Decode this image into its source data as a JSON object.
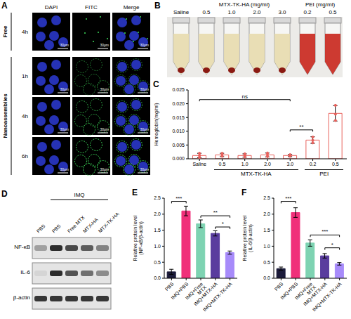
{
  "panel_A": {
    "label": "A",
    "columns": [
      "DAPI",
      "FITC",
      "Merge"
    ],
    "groups": [
      {
        "name": "Free",
        "rows": [
          "4h"
        ]
      },
      {
        "name": "Nanoassemblies",
        "rows": [
          "1h",
          "4h",
          "6h"
        ]
      }
    ],
    "scale_bar": "30μm"
  },
  "panel_B": {
    "label": "B",
    "saline": {
      "label": "Saline",
      "color": "#e8dcae"
    },
    "groups": [
      {
        "name": "MTX-TK-HA (mg/ml)",
        "labels": [
          "0.5",
          "1.0",
          "2.0",
          "3.0"
        ],
        "color": "#e8dcae"
      },
      {
        "name": "PEI (mg/ml)",
        "labels": [
          "0.2",
          "0.5"
        ],
        "color": "#c9261c"
      }
    ]
  },
  "panel_D": {
    "label": "D",
    "treatment": "IMQ",
    "lanes": [
      "PBS",
      "PBS",
      "Free MTX",
      "MTX-HA",
      "MTX-TK-HA"
    ],
    "rows": [
      "NF-κB",
      "IL-6",
      "β-actin"
    ]
  },
  "chart_data": [
    {
      "type": "bar",
      "title": "C",
      "categories": [
        "Saline",
        "0.5",
        "1.0",
        "2.0",
        "3.0",
        "0.2",
        "0.5"
      ],
      "groups": [
        {
          "label": "MTX-TK-HA",
          "from": 1,
          "to": 4
        },
        {
          "label": "PEI",
          "from": 5,
          "to": 6
        }
      ],
      "values": [
        0.0012,
        0.0014,
        0.0012,
        0.0014,
        0.0012,
        0.0068,
        0.0165
      ],
      "errors": [
        0.0008,
        0.0006,
        0.0006,
        0.0007,
        0.0004,
        0.0012,
        0.0028
      ],
      "points": [
        [
          0.0005,
          0.0012,
          0.002
        ],
        [
          0.0009,
          0.0014,
          0.002
        ],
        [
          0.0007,
          0.0012,
          0.0018
        ],
        [
          0.0008,
          0.0014,
          0.0021
        ],
        [
          0.0009,
          0.0012,
          0.0015
        ],
        [
          0.0058,
          0.0067,
          0.0079
        ],
        [
          0.0139,
          0.0162,
          0.0194
        ]
      ],
      "color": "#e8615c",
      "y_label": [
        "Hemoglobin(mg/ml)"
      ],
      "ylim": [
        0,
        0.025
      ],
      "yticks": [
        {
          "value": 0,
          "label": "0.000"
        },
        0.005,
        {
          "value": 0.01,
          "label": "0.010"
        },
        0.015,
        {
          "value": 0.02,
          "label": "0.020"
        },
        0.025
      ],
      "annotations": [
        {
          "text": "ns",
          "from": 0,
          "to": 4,
          "y": 0.0215
        },
        {
          "text": "**",
          "from": 4,
          "to": 5,
          "y": 0.0105
        }
      ]
    },
    {
      "type": "bar",
      "title": "E",
      "categories": [
        "PBS",
        "IMQ+PBS",
        "IMQ+Free MTX",
        "IMQ+MTX-HA",
        "IMQ+MTX-TK-HA"
      ],
      "values": [
        0.2,
        2.1,
        1.7,
        1.4,
        0.8
      ],
      "errors": [
        0.08,
        0.15,
        0.12,
        0.08,
        0.05
      ],
      "colors": [
        "#1b1b3a",
        "#f0307a",
        "#7ed3b2",
        "#5a3d9e",
        "#a78bfa"
      ],
      "y_label": [
        "Relative protein level",
        "(NF-κB/β-actin)"
      ],
      "ylim": [
        0,
        2.5
      ],
      "yticks": [
        {
          "value": 0,
          "label": "0.0"
        },
        0.5,
        {
          "value": 1,
          "label": "1.0"
        },
        1.5,
        {
          "value": 2,
          "label": "2.0"
        },
        2.5
      ],
      "annotations": [
        {
          "text": "***",
          "from": 0,
          "to": 1,
          "y": 2.4
        },
        {
          "text": "**",
          "from": 2,
          "to": 4,
          "y": 1.95
        },
        {
          "text": "*",
          "from": 3,
          "to": 4,
          "y": 1.6
        }
      ]
    },
    {
      "type": "bar",
      "title": "F",
      "categories": [
        "PBS",
        "IMQ+PBS",
        "IMQ+Free MTX",
        "IMQ+MTX-HA",
        "IMQ+MTX-TK-HA"
      ],
      "values": [
        0.3,
        2.05,
        1.1,
        0.7,
        0.45
      ],
      "errors": [
        0.05,
        0.15,
        0.1,
        0.07,
        0.04
      ],
      "colors": [
        "#1b1b3a",
        "#f0307a",
        "#7ed3b2",
        "#5a3d9e",
        "#a78bfa"
      ],
      "y_label": [
        "Relative protein level",
        "(IL-6/β-actin)"
      ],
      "ylim": [
        0,
        2.5
      ],
      "yticks": [
        {
          "value": 0,
          "label": "0.0"
        },
        0.5,
        {
          "value": 1,
          "label": "1.0"
        },
        1.5,
        {
          "value": 2,
          "label": "2.0"
        },
        2.5
      ],
      "annotations": [
        {
          "text": "***",
          "from": 0,
          "to": 1,
          "y": 2.4
        },
        {
          "text": "***",
          "from": 2,
          "to": 4,
          "y": 1.35
        },
        {
          "text": "*",
          "from": 3,
          "to": 4,
          "y": 0.95
        }
      ]
    }
  ]
}
